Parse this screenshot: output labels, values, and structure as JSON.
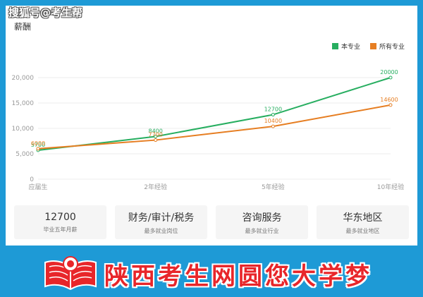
{
  "watermark": "搜狐号@考生帮",
  "section_title": "薪酬",
  "legend": [
    {
      "label": "本专业",
      "color": "#27ae60"
    },
    {
      "label": "所有专业",
      "color": "#e67e22"
    }
  ],
  "chart_data": {
    "type": "line",
    "categories": [
      "应届生",
      "2年经验",
      "5年经验",
      "10年经验"
    ],
    "ylim": [
      0,
      20000
    ],
    "yticks": [
      "0",
      "5,000",
      "10,000",
      "15,000",
      "20,000"
    ],
    "grid": true,
    "legend_position": "top-right",
    "series": [
      {
        "name": "本专业",
        "color": "#27ae60",
        "values": [
          5700,
          8400,
          12700,
          20000
        ],
        "labels": [
          "5700",
          "8400",
          "12700",
          "20000"
        ]
      },
      {
        "name": "所有专业",
        "color": "#e67e22",
        "values": [
          6000,
          7700,
          10400,
          14600
        ],
        "labels": [
          "6000",
          "7700",
          "10400",
          "14600"
        ]
      }
    ]
  },
  "stats": [
    {
      "value": "12700",
      "label": "毕业五年月薪"
    },
    {
      "value": "财务/审计/税务",
      "label": "最多就业岗位"
    },
    {
      "value": "咨询服务",
      "label": "最多就业行业"
    },
    {
      "value": "华东地区",
      "label": "最多就业地区"
    }
  ],
  "banner": {
    "text": "陕西考生网圆您大学梦",
    "colors": {
      "text": "#e8262a",
      "logo": "#e8262a"
    }
  }
}
